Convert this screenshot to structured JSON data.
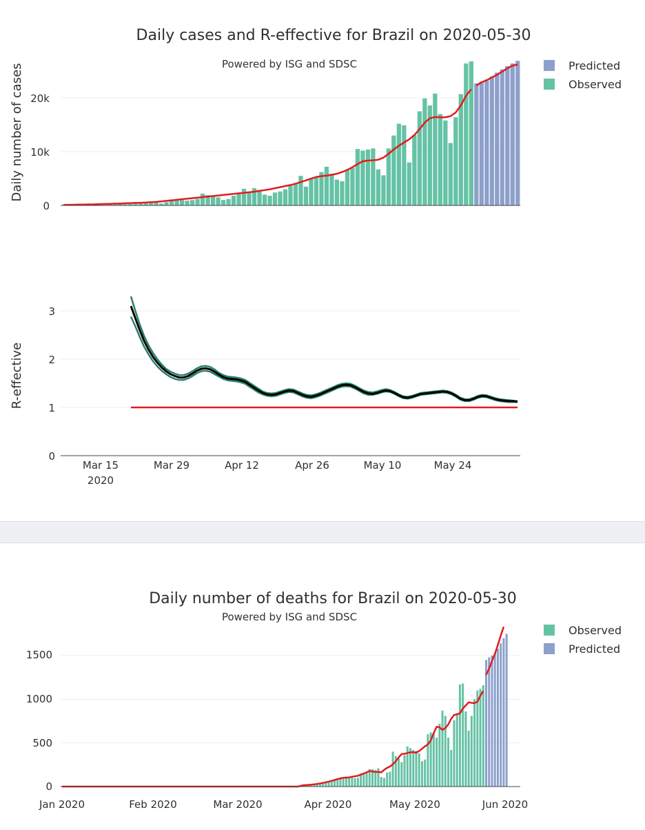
{
  "colors": {
    "observed": "#66c2a5",
    "predicted": "#8da0cb",
    "trend": "#e41a1c",
    "reff_band": "#2a7f6a",
    "reff_line": "#000000",
    "grid": "#ebedf0"
  },
  "cases_chart": {
    "title": "Daily cases and R-effective for Brazil on 2020-05-30",
    "subtitle": "Powered by ISG and SDSC",
    "ylabel": "Daily number of cases",
    "yticks": [
      "0",
      "10k",
      "20k"
    ],
    "legend": [
      "Predicted",
      "Observed"
    ]
  },
  "reff_chart": {
    "ylabel": "R-effective",
    "yticks": [
      "0",
      "1",
      "2",
      "3"
    ],
    "xticks": [
      "Mar 15",
      "Mar 29",
      "Apr 12",
      "Apr 26",
      "May 10",
      "May 24"
    ],
    "xtick_year": "2020"
  },
  "deaths_chart": {
    "title": "Daily number of deaths for Brazil on 2020-05-30",
    "subtitle": "Powered by ISG and SDSC",
    "yticks": [
      "0",
      "500",
      "1000",
      "1500"
    ],
    "xticks": [
      "Jan 2020",
      "Feb 2020",
      "Mar 2020",
      "Apr 2020",
      "May 2020",
      "Jun 2020"
    ],
    "legend": [
      "Observed",
      "Predicted"
    ]
  },
  "chart_data": [
    {
      "type": "bar",
      "title": "Daily cases and R-effective for Brazil on 2020-05-30",
      "ylabel": "Daily number of cases",
      "ylim": [
        0,
        27000
      ],
      "x_start": "2020-03-06",
      "observed": [
        0,
        0,
        10,
        10,
        20,
        40,
        50,
        60,
        80,
        120,
        160,
        200,
        220,
        250,
        300,
        350,
        400,
        450,
        500,
        350,
        600,
        1100,
        1100,
        1000,
        900,
        1000,
        1200,
        2200,
        1900,
        1700,
        1500,
        1000,
        1200,
        1800,
        2100,
        3100,
        2500,
        3200,
        2900,
        2000,
        1800,
        2400,
        2600,
        3000,
        3700,
        4000,
        5500,
        3500,
        5000,
        5200,
        6200,
        7200,
        5900,
        4800,
        4500,
        6700,
        7000,
        10500,
        10200,
        10400,
        10600,
        6700,
        5600,
        10600,
        13000,
        15200,
        14900,
        8000,
        13100,
        17500,
        19900,
        18600,
        20800,
        17000,
        15800,
        11600,
        16400,
        20700,
        26400,
        26800
      ],
      "predicted": [
        22700,
        23000,
        23400,
        24000,
        24700,
        25300,
        25900,
        26400,
        26900
      ],
      "trend": [
        100,
        110,
        130,
        150,
        170,
        190,
        210,
        240,
        270,
        300,
        330,
        360,
        400,
        430,
        470,
        500,
        550,
        600,
        650,
        750,
        850,
        950,
        1050,
        1150,
        1250,
        1350,
        1450,
        1550,
        1650,
        1750,
        1850,
        1950,
        2050,
        2150,
        2250,
        2350,
        2450,
        2550,
        2700,
        2850,
        3000,
        3200,
        3400,
        3600,
        3800,
        4050,
        4350,
        4650,
        5000,
        5300,
        5450,
        5550,
        5700,
        5900,
        6200,
        6600,
        7100,
        7700,
        8200,
        8350,
        8400,
        8500,
        8900,
        9600,
        10400,
        11100,
        11700,
        12300,
        13100,
        14200,
        15400,
        16200,
        16450,
        16400,
        16400,
        16600,
        17300,
        18600,
        20400,
        21600,
        22300,
        22900,
        23300,
        23800,
        24300,
        24900,
        25500,
        26000,
        26200
      ]
    },
    {
      "type": "line",
      "title": "R-effective",
      "ylabel": "R-effective",
      "ylim": [
        0,
        3.5
      ],
      "x_start": "2020-03-20",
      "reff": [
        3.1,
        2.85,
        2.6,
        2.38,
        2.2,
        2.05,
        1.93,
        1.83,
        1.75,
        1.69,
        1.65,
        1.62,
        1.62,
        1.65,
        1.7,
        1.76,
        1.8,
        1.81,
        1.79,
        1.74,
        1.68,
        1.63,
        1.6,
        1.59,
        1.58,
        1.56,
        1.53,
        1.47,
        1.41,
        1.35,
        1.3,
        1.27,
        1.26,
        1.27,
        1.3,
        1.33,
        1.35,
        1.34,
        1.3,
        1.26,
        1.23,
        1.22,
        1.24,
        1.27,
        1.31,
        1.35,
        1.39,
        1.43,
        1.46,
        1.47,
        1.46,
        1.42,
        1.37,
        1.32,
        1.29,
        1.28,
        1.3,
        1.33,
        1.35,
        1.34,
        1.3,
        1.25,
        1.21,
        1.2,
        1.22,
        1.25,
        1.28,
        1.29,
        1.3,
        1.31,
        1.32,
        1.33,
        1.32,
        1.29,
        1.24,
        1.18,
        1.15,
        1.15,
        1.18,
        1.22,
        1.24,
        1.23,
        1.2,
        1.17,
        1.15,
        1.14,
        1.13,
        1.13,
        1.12
      ],
      "reff_upper": [
        3.3,
        3.0,
        2.72,
        2.48,
        2.29,
        2.13,
        2.0,
        1.89,
        1.8,
        1.74,
        1.7,
        1.67,
        1.67,
        1.7,
        1.75,
        1.81,
        1.85,
        1.86,
        1.84,
        1.79,
        1.72,
        1.67,
        1.64,
        1.63,
        1.62,
        1.6,
        1.57,
        1.51,
        1.45,
        1.39,
        1.33,
        1.3,
        1.29,
        1.3,
        1.33,
        1.36,
        1.38,
        1.37,
        1.33,
        1.29,
        1.26,
        1.25,
        1.27,
        1.3,
        1.34,
        1.38,
        1.42,
        1.46,
        1.49,
        1.5,
        1.49,
        1.45,
        1.4,
        1.35,
        1.32,
        1.31,
        1.33,
        1.36,
        1.38,
        1.36,
        1.32,
        1.27,
        1.23,
        1.22,
        1.24,
        1.27,
        1.3,
        1.31,
        1.32,
        1.33,
        1.34,
        1.35,
        1.34,
        1.31,
        1.26,
        1.2,
        1.17,
        1.17,
        1.2,
        1.24,
        1.26,
        1.25,
        1.22,
        1.19,
        1.17,
        1.16,
        1.15,
        1.14,
        1.13
      ],
      "reff_lower": [
        2.88,
        2.68,
        2.46,
        2.26,
        2.1,
        1.96,
        1.85,
        1.76,
        1.69,
        1.63,
        1.59,
        1.57,
        1.57,
        1.6,
        1.65,
        1.71,
        1.75,
        1.76,
        1.74,
        1.69,
        1.64,
        1.59,
        1.56,
        1.55,
        1.54,
        1.52,
        1.49,
        1.43,
        1.37,
        1.31,
        1.27,
        1.24,
        1.23,
        1.24,
        1.27,
        1.3,
        1.32,
        1.31,
        1.27,
        1.23,
        1.2,
        1.19,
        1.21,
        1.24,
        1.28,
        1.32,
        1.36,
        1.4,
        1.43,
        1.44,
        1.43,
        1.39,
        1.34,
        1.29,
        1.26,
        1.26,
        1.28,
        1.31,
        1.33,
        1.32,
        1.28,
        1.23,
        1.19,
        1.18,
        1.2,
        1.23,
        1.26,
        1.27,
        1.28,
        1.29,
        1.3,
        1.31,
        1.3,
        1.27,
        1.22,
        1.16,
        1.13,
        1.13,
        1.16,
        1.2,
        1.22,
        1.21,
        1.18,
        1.15,
        1.13,
        1.12,
        1.11,
        1.11,
        1.11
      ],
      "threshold": 1
    },
    {
      "type": "bar",
      "title": "Daily number of deaths for Brazil on 2020-05-30",
      "ylim": [
        0,
        1850
      ],
      "x_start": "2020-01-01",
      "observed_start": "2020-03-23",
      "observed": [
        10,
        12,
        15,
        20,
        25,
        30,
        35,
        40,
        45,
        55,
        65,
        75,
        85,
        95,
        105,
        115,
        115,
        110,
        95,
        100,
        150,
        140,
        160,
        200,
        200,
        190,
        210,
        110,
        100,
        160,
        170,
        400,
        350,
        320,
        280,
        360,
        460,
        440,
        420,
        410,
        380,
        290,
        310,
        600,
        620,
        610,
        560,
        720,
        870,
        810,
        560,
        420,
        760,
        840,
        1170,
        1180,
        860,
        640,
        810,
        1000,
        1100,
        1120,
        1160
      ],
      "predicted_start": "2020-05-25",
      "predicted": [
        1450,
        1480,
        1500,
        1530,
        1580,
        1640,
        1700,
        1750
      ],
      "trend_start": "2020-01-01",
      "trend_end_observed": "2020-05-24",
      "trend_predicted": [
        1280,
        1350,
        1440,
        1520,
        1620,
        1730,
        1830
      ]
    }
  ]
}
